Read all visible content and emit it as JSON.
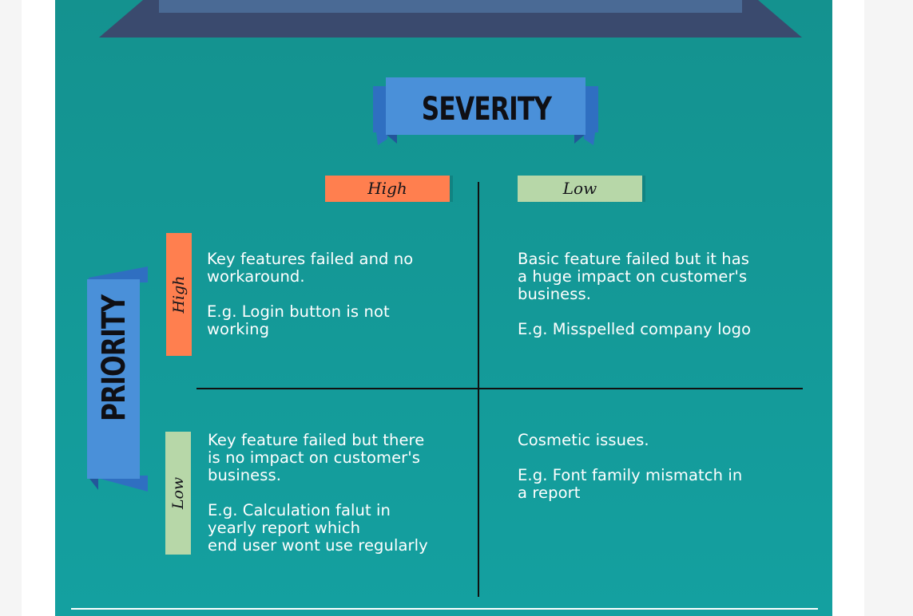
{
  "severity": {
    "title": "SEVERITY",
    "high_label": "High",
    "low_label": "Low"
  },
  "priority": {
    "title": "PRIORITY",
    "high_label": "High",
    "low_label": "Low"
  },
  "quadrants": {
    "high_priority_high_severity": {
      "description": "Key features failed and no\nworkaround.",
      "example": "E.g. Login button is not\nworking"
    },
    "high_priority_low_severity": {
      "description": "Basic feature failed but it has\na huge impact on customer's\nbusiness.",
      "example": "E.g. Misspelled company logo"
    },
    "low_priority_high_severity": {
      "description": "Key feature failed but there\nis no impact on customer's\nbusiness.",
      "example": "E.g. Calculation falut in\nyearly report which\nend user wont use regularly"
    },
    "low_priority_low_severity": {
      "description": "Cosmetic issues.",
      "example": "E.g. Font family mismatch in\na report"
    }
  },
  "colors": {
    "background": "#14a0a0",
    "ribbon": "#4a90d9",
    "ribbon_fold": "#2f6fc1",
    "high": "#ff7f4f",
    "low": "#b7d7a8"
  }
}
